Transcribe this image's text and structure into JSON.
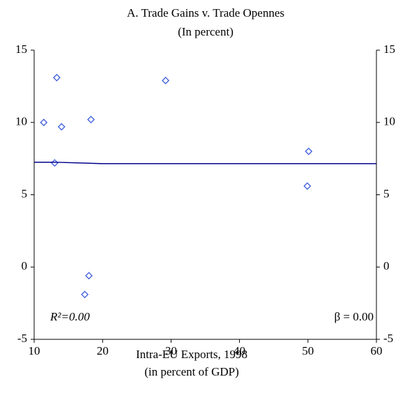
{
  "chart_data": {
    "type": "scatter",
    "title": "A. Trade Gains v. Trade Opennes",
    "subtitle": "(In percent)",
    "x_label": [
      "Intra-EU Exports, 1998",
      "(in percent of GDP)"
    ],
    "series": [
      {
        "type": "scatter",
        "color": "#3b5bdb",
        "x": [
          11.4,
          13.3,
          14.0,
          13.0,
          18.3,
          29.2,
          50.1,
          49.9,
          18.0,
          17.4
        ],
        "values": [
          10.0,
          13.1,
          9.7,
          7.2,
          10.2,
          12.9,
          8.0,
          5.6,
          -0.6,
          -1.9
        ]
      },
      {
        "type": "line",
        "color": "#00008b",
        "x": [
          10,
          13,
          20,
          60
        ],
        "values": [
          7.25,
          7.25,
          7.15,
          7.15
        ]
      }
    ],
    "annotations": [
      "R²=0.00",
      "β = 0.00"
    ],
    "xlim": [
      10,
      60
    ],
    "xticks": [
      10,
      20,
      30,
      40,
      50,
      60
    ],
    "ylim": [
      -5,
      15
    ],
    "yticks": [
      -5,
      0,
      5,
      10,
      15
    ],
    "y2lim": [
      -5,
      15
    ],
    "y2ticks": [
      -5,
      0,
      5,
      10,
      15
    ]
  }
}
